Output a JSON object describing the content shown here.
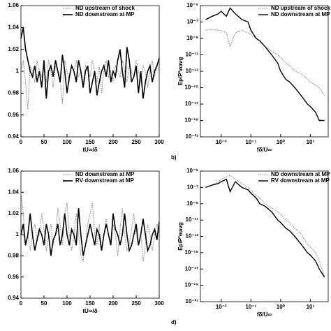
{
  "chart_data": [
    {
      "type": "line",
      "xlabel": "tU∞/δ",
      "x": [
        0,
        5,
        10,
        15,
        20,
        25,
        30,
        35,
        40,
        45,
        50,
        55,
        60,
        65,
        70,
        75,
        80,
        85,
        90,
        95,
        100,
        105,
        110,
        115,
        120,
        125,
        130,
        135,
        140,
        145,
        150,
        155,
        160,
        165,
        170,
        175,
        180,
        185,
        190,
        195,
        200,
        205,
        210,
        215,
        220,
        225,
        230,
        235,
        240,
        245,
        250,
        255,
        260,
        265,
        270,
        275,
        280,
        285,
        290,
        295,
        300
      ],
      "xlim": [
        0,
        300
      ],
      "xticks": [
        0,
        50,
        100,
        150,
        200,
        250,
        300
      ],
      "ylim": [
        0.94,
        1.06
      ],
      "yticks": [
        0.94,
        0.96,
        0.98,
        1,
        1.02,
        1.04,
        1.06
      ],
      "log": false,
      "series": [
        {
          "name": "ND upstream of shock",
          "color": "#888888",
          "style": "dotted",
          "width": 1,
          "values": [
            1.0,
            1.01,
            0.99,
            0.965,
            1.005,
            1.0,
            0.99,
            1.01,
            1.0,
            0.995,
            1.005,
            0.99,
            1.01,
            1.0,
            0.985,
            1.005,
            1.0,
            0.995,
            0.97,
            1.01,
            1.0,
            0.99,
            1.005,
            1.0,
            1.01,
            0.995,
            1.0,
            0.99,
            1.005,
            1.0,
            0.995,
            1.01,
            1.0,
            0.99,
            1.005,
            0.98,
            1.0,
            1.01,
            0.995,
            1.0,
            0.99,
            1.005,
            1.0,
            0.995,
            1.01,
            1.0,
            0.99,
            1.005,
            1.0,
            0.995,
            1.01,
            1.0,
            0.99,
            1.005,
            1.0,
            0.985,
            1.0,
            1.01,
            0.995,
            1.005,
            1.0
          ]
        },
        {
          "name": "ND downstream at MP",
          "color": "#000000",
          "style": "solid",
          "width": 1.6,
          "values": [
            1.03,
            1.04,
            1.02,
            1.01,
            1.0,
            0.995,
            1.005,
            0.99,
            1.0,
            0.985,
            1.01,
            0.975,
            1.0,
            1.005,
            0.995,
            1.01,
            1.0,
            0.99,
            1.015,
            1.0,
            0.98,
            0.995,
            1.005,
            1.0,
            0.99,
            1.01,
            1.0,
            0.985,
            1.0,
            1.005,
            0.98,
            0.99,
            1.0,
            0.978,
            0.99,
            1.0,
            1.005,
            0.995,
            1.01,
            0.99,
            1.0,
            0.995,
            1.01,
            1.02,
            1.0,
            0.985,
            1.022,
            1.01,
            0.99,
            0.995,
            1.005,
            0.98,
            1.0,
            0.975,
            0.99,
            1.0,
            1.005,
            0.99,
            1.0,
            1.005,
            1.012
          ]
        }
      ]
    },
    {
      "type": "line",
      "xlabel": "fδ/U∞",
      "ylabel": "Ep/P²wavg",
      "annotation": "b)",
      "x": [
        0.003,
        0.005,
        0.008,
        0.01,
        0.015,
        0.02,
        0.03,
        0.05,
        0.08,
        0.1,
        0.15,
        0.2,
        0.3,
        0.5,
        0.8,
        1,
        1.5,
        2,
        3,
        5,
        8,
        10,
        15,
        20,
        30
      ],
      "xlim": [
        0.002,
        40
      ],
      "xticks": [
        {
          "value": 0.01,
          "label": "10⁻²"
        },
        {
          "value": 0.1,
          "label": "10⁻¹"
        },
        {
          "value": 1,
          "label": "10⁰"
        },
        {
          "value": 10,
          "label": "10¹"
        }
      ],
      "ylim": [
        1e-21,
        1e-05
      ],
      "yticks": [
        {
          "value": 1e-21,
          "label": "10⁻²¹"
        },
        {
          "value": 1e-19,
          "label": "10⁻¹⁹"
        },
        {
          "value": 1e-17,
          "label": "10⁻¹⁷"
        },
        {
          "value": 1e-15,
          "label": "10⁻¹⁵"
        },
        {
          "value": 1e-13,
          "label": "10⁻¹³"
        },
        {
          "value": 1e-11,
          "label": "10⁻¹¹"
        },
        {
          "value": 1e-09,
          "label": "10⁻⁹"
        },
        {
          "value": 1e-07,
          "label": "10⁻⁷"
        },
        {
          "value": 1e-05,
          "label": "10⁻⁵"
        }
      ],
      "log": true,
      "series": [
        {
          "name": "ND upstream of shock",
          "color": "#888888",
          "style": "dotted",
          "width": 1,
          "values": [
            1e-08,
            1.2e-08,
            1e-08,
            9e-09,
            5e-09,
            1e-10,
            5e-09,
            1e-08,
            5e-09,
            3e-09,
            1e-09,
            5e-10,
            1e-10,
            3e-11,
            1e-11,
            5e-12,
            1e-12,
            5e-13,
            1e-13,
            5e-14,
            1e-14,
            5e-15,
            2e-15,
            1e-15,
            1e-16
          ]
        },
        {
          "name": "ND downstream at MP",
          "color": "#000000",
          "style": "solid",
          "width": 1.4,
          "values": [
            2e-07,
            5e-07,
            1e-06,
            2e-06,
            5e-07,
            5e-06,
            1e-06,
            2e-07,
            1e-07,
            1e-08,
            1e-09,
            5e-10,
            1e-10,
            1e-11,
            1e-12,
            1e-13,
            1e-14,
            5e-15,
            1e-15,
            1e-16,
            1e-17,
            5e-18,
            1e-18,
            1e-19,
            1e-19
          ]
        }
      ]
    },
    {
      "type": "line",
      "xlabel": "tU∞/δ",
      "x": [
        0,
        5,
        10,
        15,
        20,
        25,
        30,
        35,
        40,
        45,
        50,
        55,
        60,
        65,
        70,
        75,
        80,
        85,
        90,
        95,
        100,
        105,
        110,
        115,
        120,
        125,
        130,
        135,
        140,
        145,
        150,
        155,
        160,
        165,
        170,
        175,
        180,
        185,
        190,
        195,
        200,
        205,
        210,
        215,
        220,
        225,
        230,
        235,
        240,
        245,
        250,
        255,
        260,
        265,
        270,
        275,
        280,
        285,
        290,
        295,
        300
      ],
      "xlim": [
        0,
        300
      ],
      "xticks": [
        0,
        50,
        100,
        150,
        200,
        250,
        300
      ],
      "ylim": [
        0.94,
        1.06
      ],
      "yticks": [
        0.94,
        0.96,
        0.98,
        1,
        1.02,
        1.04,
        1.06
      ],
      "log": false,
      "series": [
        {
          "name": "ND downstream at MP",
          "color": "#888888",
          "style": "dotted",
          "width": 1,
          "values": [
            1.04,
            1.02,
            0.99,
            1.0,
            0.985,
            1.0,
            1.01,
            0.995,
            1.0,
            1.02,
            1.005,
            0.985,
            1.0,
            1.01,
            0.99,
            1.0,
            1.025,
            1.01,
            0.99,
            1.02,
            1.03,
            1.0,
            0.985,
            1.0,
            1.02,
            1.0,
            0.98,
            0.975,
            0.99,
            1.01,
            1.02,
            1.03,
            1.0,
            0.99,
            1.01,
            0.985,
            1.0,
            1.015,
            1.0,
            0.99,
            1.01,
            1.0,
            0.98,
            1.005,
            1.025,
            1.0,
            0.985,
            0.99,
            1.005,
            1.02,
            1.0,
            0.99,
            1.0,
            0.975,
            0.99,
            1.01,
            1.0,
            0.985,
            1.0,
            1.01,
            1.0
          ]
        },
        {
          "name": "RV downstream at MP",
          "color": "#000000",
          "style": "solid",
          "width": 1.6,
          "values": [
            1.0,
            1.01,
            0.99,
            1.0,
            1.02,
            1.0,
            0.985,
            0.995,
            1.005,
            1.0,
            0.99,
            1.01,
            1.0,
            0.98,
            0.995,
            1.0,
            1.01,
            0.99,
            1.0,
            1.02,
            1.0,
            0.99,
            1.005,
            1.0,
            0.99,
            1.025,
            1.0,
            0.98,
            0.99,
            1.0,
            1.01,
            1.0,
            0.99,
            1.005,
            1.0,
            0.985,
            1.0,
            1.01,
            1.0,
            0.99,
            1.02,
            1.005,
            1.0,
            0.99,
            1.0,
            1.02,
            1.0,
            0.985,
            0.99,
            1.0,
            1.01,
            0.99,
            1.0,
            1.015,
            1.0,
            0.985,
            0.99,
            1.0,
            1.005,
            0.995,
            1.012
          ]
        }
      ]
    },
    {
      "type": "line",
      "xlabel": "fδ/U∞",
      "ylabel": "Ep/P²wavg",
      "annotation": "d)",
      "x": [
        0.003,
        0.005,
        0.008,
        0.01,
        0.015,
        0.02,
        0.03,
        0.05,
        0.08,
        0.1,
        0.15,
        0.2,
        0.3,
        0.5,
        0.8,
        1,
        1.5,
        2,
        3,
        5,
        8,
        10,
        15,
        20,
        30
      ],
      "xlim": [
        0.002,
        40
      ],
      "xticks": [
        {
          "value": 0.01,
          "label": "10⁻²"
        },
        {
          "value": 0.1,
          "label": "10⁻¹"
        },
        {
          "value": 1,
          "label": "10⁰"
        },
        {
          "value": 10,
          "label": "10¹"
        }
      ],
      "ylim": [
        1e-21,
        1e-05
      ],
      "yticks": [
        {
          "value": 1e-21,
          "label": "10⁻²¹"
        },
        {
          "value": 1e-19,
          "label": "10⁻¹⁹"
        },
        {
          "value": 1e-17,
          "label": "10⁻¹⁷"
        },
        {
          "value": 1e-15,
          "label": "10⁻¹⁵"
        },
        {
          "value": 1e-13,
          "label": "10⁻¹³"
        },
        {
          "value": 1e-11,
          "label": "10⁻¹¹"
        },
        {
          "value": 1e-09,
          "label": "10⁻⁹"
        },
        {
          "value": 1e-07,
          "label": "10⁻⁷"
        },
        {
          "value": 1e-05,
          "label": "10⁻⁵"
        }
      ],
      "log": true,
      "series": [
        {
          "name": "ND downstream at MP",
          "color": "#888888",
          "style": "dotted",
          "width": 1,
          "values": [
            1e-07,
            2e-07,
            5e-07,
            1e-06,
            2e-06,
            3e-06,
            1e-06,
            3e-07,
            1e-07,
            5e-08,
            1e-08,
            5e-09,
            1e-09,
            3e-10,
            1e-10,
            5e-11,
            1e-11,
            5e-12,
            1e-12,
            2e-13,
            1e-14,
            5e-15,
            1e-15,
            1e-16,
            1e-18
          ]
        },
        {
          "name": "RV downstream at MP",
          "color": "#000000",
          "style": "solid",
          "width": 1.4,
          "values": [
            1e-07,
            2e-07,
            3e-07,
            5e-07,
            1e-06,
            3e-08,
            5e-07,
            1e-07,
            5e-08,
            2e-08,
            5e-09,
            1e-09,
            5e-10,
            1e-10,
            1e-11,
            5e-12,
            1e-12,
            5e-13,
            1e-13,
            1e-14,
            1e-15,
            5e-16,
            1e-16,
            1e-17,
            1e-18
          ]
        }
      ]
    }
  ]
}
